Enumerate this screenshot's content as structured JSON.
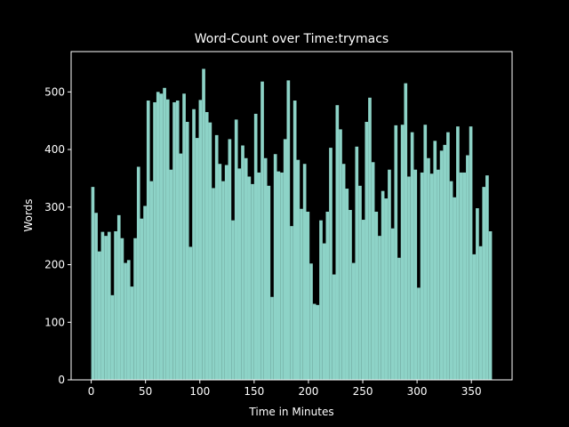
{
  "chart_data": {
    "type": "bar",
    "title": "Word-Count over Time:trymacs",
    "xlabel": "Time in Minutes",
    "ylabel": "Words",
    "xlim": [
      -18.5,
      387.5
    ],
    "ylim": [
      0,
      570
    ],
    "xticks": [
      0,
      50,
      100,
      150,
      200,
      250,
      300,
      350
    ],
    "yticks": [
      0,
      100,
      200,
      300,
      400,
      500
    ],
    "bar_width": 3,
    "bar_color": "#8dd3c7",
    "background": "#000000",
    "foreground": "#ffffff",
    "grid": false,
    "x": [
      0,
      3,
      6,
      9,
      12,
      15,
      18,
      21,
      24,
      27,
      30,
      33,
      36,
      39,
      42,
      45,
      48,
      51,
      54,
      57,
      60,
      63,
      66,
      69,
      72,
      75,
      78,
      81,
      84,
      87,
      90,
      93,
      96,
      99,
      102,
      105,
      108,
      111,
      114,
      117,
      120,
      123,
      126,
      129,
      132,
      135,
      138,
      141,
      144,
      147,
      150,
      153,
      156,
      159,
      162,
      165,
      168,
      171,
      174,
      177,
      180,
      183,
      186,
      189,
      192,
      195,
      198,
      201,
      204,
      207,
      210,
      213,
      216,
      219,
      222,
      225,
      228,
      231,
      234,
      237,
      240,
      243,
      246,
      249,
      252,
      255,
      258,
      261,
      264,
      267,
      270,
      273,
      276,
      279,
      282,
      285,
      288,
      291,
      294,
      297,
      300,
      303,
      306,
      309,
      312,
      315,
      318,
      321,
      324,
      327,
      330,
      333,
      336,
      339,
      342,
      345,
      348,
      351,
      354,
      357,
      360,
      363,
      366
    ],
    "values": [
      335,
      290,
      223,
      257,
      250,
      257,
      147,
      258,
      286,
      246,
      203,
      208,
      162,
      246,
      370,
      280,
      302,
      485,
      345,
      482,
      500,
      497,
      507,
      487,
      365,
      482,
      485,
      393,
      497,
      448,
      231,
      470,
      420,
      486,
      540,
      465,
      447,
      333,
      425,
      375,
      345,
      373,
      418,
      277,
      452,
      367,
      407,
      385,
      353,
      340,
      462,
      360,
      518,
      385,
      337,
      144,
      392,
      362,
      360,
      418,
      520,
      267,
      485,
      382,
      297,
      375,
      292,
      202,
      132,
      130,
      277,
      237,
      292,
      403,
      183,
      477,
      435,
      375,
      332,
      295,
      203,
      405,
      337,
      278,
      448,
      490,
      378,
      292,
      250,
      328,
      315,
      365,
      263,
      442,
      212,
      443,
      515,
      353,
      430,
      365,
      160,
      360,
      443,
      385,
      358,
      415,
      365,
      398,
      408,
      430,
      345,
      317,
      440,
      360,
      360,
      390,
      440,
      218,
      298,
      232,
      335,
      355,
      258
    ]
  }
}
